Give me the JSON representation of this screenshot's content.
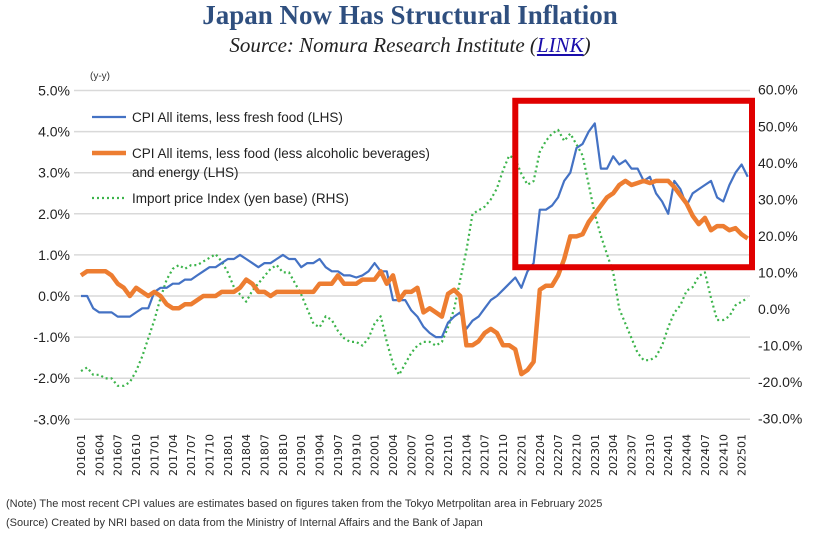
{
  "header": {
    "title": "Japan Now Has Structural Inflation",
    "subtitle_prefix": "Source: Nomura Research Institute (",
    "subtitle_link": "LINK",
    "subtitle_suffix": ")"
  },
  "notes": [
    "(Note) The most recent CPI values are estimates based on figures taken from the Tokyo Metrpolitan area in February 2025",
    "(Source) Created by NRI based on data from the Ministry of Internal Affairs and the Bank of Japan"
  ],
  "chart_data": {
    "type": "line",
    "title": "",
    "unit_label": "(y-y)",
    "grid": true,
    "legend_placement": "top-left",
    "y_left": {
      "ylim": [
        -3,
        5
      ],
      "ticks": [
        "-3.0%",
        "-2.0%",
        "-1.0%",
        "0.0%",
        "1.0%",
        "2.0%",
        "3.0%",
        "4.0%",
        "5.0%"
      ],
      "tick_values": [
        -3,
        -2,
        -1,
        0,
        1,
        2,
        3,
        4,
        5
      ]
    },
    "y_right": {
      "ylim": [
        -30,
        60
      ],
      "ticks": [
        "-30.0%",
        "-20.0%",
        "-10.0%",
        "0.0%",
        "10.0%",
        "20.0%",
        "30.0%",
        "40.0%",
        "50.0%",
        "60.0%"
      ],
      "tick_values": [
        -30,
        -20,
        -10,
        0,
        10,
        20,
        30,
        40,
        50,
        60
      ]
    },
    "x_ticks": [
      "201601",
      "201604",
      "201607",
      "201610",
      "201701",
      "201704",
      "201707",
      "201710",
      "201801",
      "201804",
      "201807",
      "201810",
      "201901",
      "201904",
      "201907",
      "201910",
      "202001",
      "202004",
      "202007",
      "202010",
      "202101",
      "202104",
      "202107",
      "202110",
      "202201",
      "202204",
      "202207",
      "202210",
      "202301",
      "202304",
      "202307",
      "202310",
      "202401",
      "202404",
      "202407",
      "202410",
      "202501"
    ],
    "x": [
      "201601",
      "201602",
      "201603",
      "201604",
      "201605",
      "201606",
      "201607",
      "201608",
      "201609",
      "201610",
      "201611",
      "201612",
      "201701",
      "201702",
      "201703",
      "201704",
      "201705",
      "201706",
      "201707",
      "201708",
      "201709",
      "201710",
      "201711",
      "201712",
      "201801",
      "201802",
      "201803",
      "201804",
      "201805",
      "201806",
      "201807",
      "201808",
      "201809",
      "201810",
      "201811",
      "201812",
      "201901",
      "201902",
      "201903",
      "201904",
      "201905",
      "201906",
      "201907",
      "201908",
      "201909",
      "201910",
      "201911",
      "201912",
      "202001",
      "202002",
      "202003",
      "202004",
      "202005",
      "202006",
      "202007",
      "202008",
      "202009",
      "202010",
      "202011",
      "202012",
      "202101",
      "202102",
      "202103",
      "202104",
      "202105",
      "202106",
      "202107",
      "202108",
      "202109",
      "202110",
      "202111",
      "202112",
      "202201",
      "202202",
      "202203",
      "202204",
      "202205",
      "202206",
      "202207",
      "202208",
      "202209",
      "202210",
      "202211",
      "202212",
      "202301",
      "202302",
      "202303",
      "202304",
      "202305",
      "202306",
      "202307",
      "202308",
      "202309",
      "202310",
      "202311",
      "202312",
      "202401",
      "202402",
      "202403",
      "202404",
      "202405",
      "202406",
      "202407",
      "202408",
      "202409",
      "202410",
      "202411",
      "202412",
      "202501",
      "202502"
    ],
    "series": [
      {
        "name": "CPI All items, less fresh food (LHS)",
        "axis": "left",
        "color": "#4472c4",
        "style": "solid",
        "values": [
          0.0,
          0.0,
          -0.3,
          -0.4,
          -0.4,
          -0.4,
          -0.5,
          -0.5,
          -0.5,
          -0.4,
          -0.3,
          -0.3,
          0.1,
          0.2,
          0.2,
          0.3,
          0.3,
          0.4,
          0.4,
          0.5,
          0.6,
          0.7,
          0.7,
          0.8,
          0.9,
          0.9,
          1.0,
          0.9,
          0.8,
          0.7,
          0.8,
          0.8,
          0.9,
          1.0,
          0.9,
          0.9,
          0.7,
          0.8,
          0.8,
          0.9,
          0.7,
          0.6,
          0.6,
          0.5,
          0.5,
          0.45,
          0.5,
          0.6,
          0.8,
          0.6,
          0.6,
          -0.1,
          -0.1,
          -0.1,
          -0.35,
          -0.5,
          -0.75,
          -0.9,
          -1.0,
          -1.0,
          -0.65,
          -0.5,
          -0.4,
          -0.8,
          -0.6,
          -0.5,
          -0.3,
          -0.1,
          0.0,
          0.15,
          0.3,
          0.45,
          0.2,
          0.6,
          0.8,
          2.1,
          2.1,
          2.2,
          2.4,
          2.8,
          3.0,
          3.6,
          3.7,
          4.0,
          4.2,
          3.1,
          3.1,
          3.4,
          3.2,
          3.3,
          3.1,
          3.1,
          2.8,
          2.9,
          2.5,
          2.3,
          2.0,
          2.8,
          2.6,
          2.2,
          2.5,
          2.6,
          2.7,
          2.8,
          2.4,
          2.3,
          2.7,
          3.0,
          3.2,
          2.9
        ]
      },
      {
        "name": "CPI All items, less food (less alcoholic beverages) and energy (LHS)",
        "name_line1": "CPI All items, less food (less alcoholic beverages)",
        "name_line2": "and energy (LHS)",
        "axis": "left",
        "color": "#ed7d31",
        "style": "thick",
        "values": [
          0.5,
          0.6,
          0.6,
          0.6,
          0.6,
          0.5,
          0.3,
          0.2,
          0.0,
          0.2,
          0.1,
          0.0,
          0.1,
          0.0,
          -0.2,
          -0.3,
          -0.3,
          -0.2,
          -0.2,
          -0.1,
          0.0,
          0.0,
          0.0,
          0.1,
          0.1,
          0.1,
          0.2,
          0.4,
          0.3,
          0.1,
          0.1,
          0.0,
          0.1,
          0.1,
          0.1,
          0.1,
          0.1,
          0.1,
          0.1,
          0.3,
          0.3,
          0.3,
          0.5,
          0.3,
          0.3,
          0.3,
          0.4,
          0.4,
          0.4,
          0.6,
          0.3,
          0.5,
          -0.1,
          0.1,
          0.1,
          0.2,
          -0.4,
          -0.3,
          -0.4,
          -0.5,
          0.05,
          0.15,
          0.0,
          -1.2,
          -1.2,
          -1.1,
          -0.9,
          -0.8,
          -0.9,
          -1.2,
          -1.2,
          -1.3,
          -1.9,
          -1.8,
          -1.6,
          0.15,
          0.25,
          0.25,
          0.5,
          0.9,
          1.45,
          1.45,
          1.5,
          1.8,
          2.0,
          2.2,
          2.4,
          2.5,
          2.7,
          2.8,
          2.7,
          2.75,
          2.8,
          2.75,
          2.8,
          2.8,
          2.8,
          2.65,
          2.45,
          2.25,
          1.95,
          1.75,
          1.9,
          1.6,
          1.7,
          1.7,
          1.6,
          1.65,
          1.5,
          1.4
        ]
      },
      {
        "name": "Import price Index (yen base) (RHS)",
        "axis": "right",
        "color": "#3cb44b",
        "style": "dotted",
        "values": [
          -17,
          -16,
          -18,
          -18,
          -19,
          -19,
          -21,
          -21,
          -20,
          -17,
          -13,
          -8,
          -3,
          3,
          8,
          11,
          12,
          11,
          12,
          12,
          13,
          14,
          15,
          13,
          10,
          6,
          4,
          2,
          5,
          7,
          9,
          11,
          12,
          10,
          10,
          7,
          4,
          0,
          -4,
          -5,
          -2,
          -3,
          -6,
          -8,
          -9,
          -9,
          -10,
          -8,
          -4,
          -2,
          -9,
          -15,
          -18,
          -15,
          -12,
          -10,
          -9,
          -9,
          -10,
          -9,
          -5,
          0,
          8,
          16,
          26,
          27,
          28,
          30,
          33,
          38,
          42,
          41,
          37,
          34,
          35,
          43,
          46,
          48,
          49,
          46,
          48,
          45,
          42,
          34,
          26,
          20,
          15,
          10,
          0,
          -4,
          -8,
          -12,
          -14,
          -14,
          -13,
          -10,
          -5,
          -1,
          1,
          5,
          6,
          9,
          10,
          3,
          -3,
          -3,
          -2,
          1,
          2,
          3
        ]
      }
    ],
    "highlight_box": {
      "color": "#e00000",
      "x_from": "202112",
      "y_left_from": 0.7,
      "y_left_to": 4.75
    }
  }
}
